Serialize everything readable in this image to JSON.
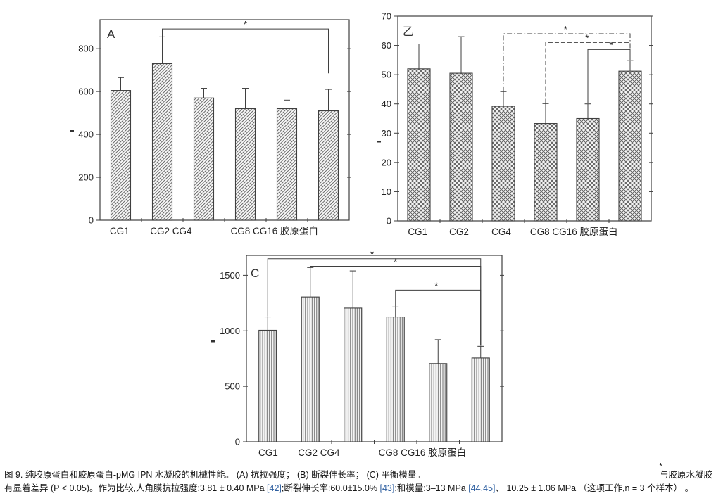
{
  "colors": {
    "axis": "#3f3f3f",
    "bar_fill": "#f4f4f4",
    "hatch": "#5f5f5f",
    "link": "#2e5fa0",
    "text": "#151515"
  },
  "caption": {
    "star": "*",
    "line1_left": "图 9. 纯胶原蛋白和胶原蛋白-pMG IPN 水凝胶的机械性能。 (A) 抗拉强度； (B) 断裂伸长率； (C) 平衡模量。",
    "line1_right": "与胶原水凝胶",
    "line2_segments": [
      {
        "t": "有显着差异 (P < 0.05)。作为比较,人角膜抗拉强度:3.81 ± 0.40 MPa ",
        "link": false
      },
      {
        "t": "[42]",
        "link": true
      },
      {
        "t": ";断裂伸长率:60.0±15.0% ",
        "link": false
      },
      {
        "t": "[43]",
        "link": true
      },
      {
        "t": ";和模量:3–13 MPa ",
        "link": false
      },
      {
        "t": "[44,45]",
        "link": true
      },
      {
        "t": "、 10.25 ± 1.06 MPa （这项工作,n = 3 个样本） 。",
        "link": false
      }
    ]
  },
  "chart_data": [
    {
      "id": "A",
      "type": "bar",
      "panel_label": "A",
      "caption_ref": "抗拉强度",
      "hatch": "diagonal",
      "categories": [
        "CG1",
        "CG2",
        "CG4",
        "CG8",
        "CG16",
        "胶原蛋白"
      ],
      "values": [
        605,
        730,
        570,
        520,
        520,
        510
      ],
      "errors_plus": [
        60,
        125,
        45,
        95,
        40,
        100
      ],
      "ylim": [
        0,
        935
      ],
      "yticks": [
        0,
        200,
        400,
        600,
        800
      ],
      "grid": false,
      "xtick_labels": [
        {
          "text": "CG1",
          "slot": 0.47
        },
        {
          "text": "CG2 CG4",
          "slot": 1.71
        },
        {
          "text": "CG8 CG16 胶原蛋白",
          "slot": 4.2
        }
      ],
      "brackets": [
        {
          "from": 1,
          "to": 5,
          "y": 892,
          "left_end": 855,
          "right_end": 685,
          "style": "solid",
          "star_frac": 0.5
        }
      ]
    },
    {
      "id": "B",
      "type": "bar",
      "panel_label": "乙",
      "caption_ref": "断裂伸长率",
      "hatch": "cross",
      "categories": [
        "CG1",
        "CG2",
        "CG4",
        "CG8",
        "CG16",
        "胶原蛋白"
      ],
      "values": [
        52,
        50.5,
        39.2,
        33.3,
        35,
        51.2
      ],
      "errors_plus": [
        8.5,
        12.5,
        5,
        6.8,
        5,
        3.6
      ],
      "ylim": [
        0,
        70
      ],
      "yticks": [
        0,
        10,
        20,
        30,
        40,
        50,
        60,
        70
      ],
      "grid": false,
      "xtick_labels": [
        {
          "text": "CG1",
          "slot": 0.47
        },
        {
          "text": "CG2",
          "slot": 1.45
        },
        {
          "text": "CG4",
          "slot": 2.45
        },
        {
          "text": "CG8 CG16 胶原蛋白",
          "slot": 4.17
        }
      ],
      "brackets": [
        {
          "from": 2,
          "to": 5,
          "y": 64,
          "left_end": 44.3,
          "right_end": 56,
          "style": "dashdot",
          "star_frac": 0.49
        },
        {
          "from": 3,
          "to": 5,
          "y": 61,
          "left_end": 40.3,
          "right_end": 55.5,
          "style": "dashed",
          "star_frac": 0.49
        },
        {
          "from": 4,
          "to": 5,
          "y": 58.6,
          "left_end": 40.4,
          "right_end": 55,
          "style": "solid",
          "star_frac": 0.55
        }
      ]
    },
    {
      "id": "C",
      "type": "bar",
      "panel_label": "C",
      "caption_ref": "平衡模量",
      "hatch": "vertical",
      "categories": [
        "CG1",
        "CG2",
        "CG4",
        "CG8",
        "CG16",
        "胶原蛋白"
      ],
      "values": [
        1005,
        1305,
        1205,
        1125,
        705,
        755
      ],
      "errors_plus": [
        120,
        265,
        335,
        90,
        215,
        105
      ],
      "ylim": [
        0,
        1680
      ],
      "yticks": [
        0,
        500,
        1000,
        1500
      ],
      "grid": false,
      "xtick_labels": [
        {
          "text": "CG1",
          "slot": 0.51
        },
        {
          "text": "CG2 CG4",
          "slot": 1.7
        },
        {
          "text": "CG8 CG16 胶原蛋白",
          "slot": 4.13
        }
      ],
      "brackets": [
        {
          "from": 0,
          "to": 5,
          "y": 1650,
          "left_end": 1130,
          "right_end": 865,
          "style": "solid",
          "star_frac": 0.49
        },
        {
          "from": 1,
          "to": 5,
          "y": 1582,
          "left_end": 1572,
          "right_end": 865,
          "style": "solid",
          "star_frac": 0.5
        },
        {
          "from": 3,
          "to": 5,
          "y": 1367,
          "left_end": 1218,
          "right_end": 865,
          "style": "solid",
          "star_frac": 0.48
        }
      ]
    }
  ]
}
